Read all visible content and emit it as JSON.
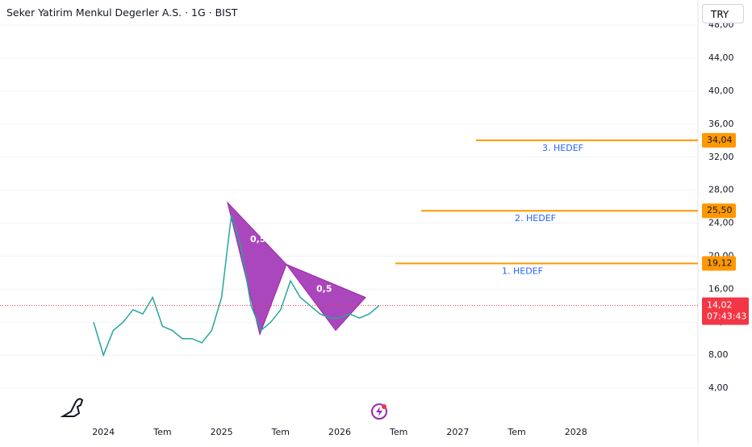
{
  "header": {
    "title": "Seker Yatirim Menkul Degerler A.S. · 1G · BIST",
    "currency": "TRY"
  },
  "chart_data": {
    "type": "line",
    "categories": [
      null,
      "2024",
      null,
      null,
      null,
      null,
      null,
      "Tem",
      null,
      null,
      null,
      null,
      null,
      "2025",
      null,
      null,
      null,
      null,
      null,
      "Tem",
      null,
      null,
      null,
      null,
      null,
      "2026",
      null,
      null,
      null,
      null,
      null,
      "Tem",
      null,
      null,
      null,
      null,
      null,
      "2027",
      null,
      null,
      null,
      null,
      null,
      "Tem",
      null,
      null,
      null,
      null,
      null,
      "2028"
    ],
    "series": [
      {
        "name": "Seker Yatirim",
        "color": "#26a69a",
        "values": [
          12,
          8,
          11,
          12,
          13.5,
          13,
          15,
          11.5,
          11,
          10,
          10,
          9.5,
          11,
          15,
          25,
          21,
          14,
          11,
          12,
          13.5,
          17,
          15,
          14,
          13,
          12.5,
          12.5,
          13,
          12.5,
          13,
          14,
          null,
          null,
          null,
          null,
          null,
          null,
          null,
          null,
          null,
          null,
          null,
          null,
          null,
          null,
          null,
          null,
          null,
          null,
          null,
          null
        ]
      }
    ],
    "ylim": [
      0,
      48.6
    ],
    "yticks": [
      {
        "value": 4,
        "label": "4,00"
      },
      {
        "value": 8,
        "label": "8,00"
      },
      {
        "value": 12,
        "label": "12,00"
      },
      {
        "value": 16,
        "label": "16,00"
      },
      {
        "value": 20,
        "label": "20,00"
      },
      {
        "value": 24,
        "label": "24,00"
      },
      {
        "value": 28,
        "label": "28,00"
      },
      {
        "value": 32,
        "label": "32,00"
      },
      {
        "value": 36,
        "label": "36,00"
      },
      {
        "value": 40,
        "label": "40,00"
      },
      {
        "value": 44,
        "label": "44,00"
      },
      {
        "value": 48,
        "label": "48,00"
      }
    ],
    "grid": true,
    "pattern": {
      "color": "#9c27b0",
      "values": [
        26.5,
        10.5,
        19,
        11,
        15
      ],
      "labels": [
        "0,5",
        "0,5"
      ]
    },
    "targets": {
      "color": "#ff9800",
      "label_color": "#2962ff",
      "values": [
        19.12,
        25.5,
        34.04
      ],
      "value_labels": [
        "19,12",
        "25,50",
        "34,04"
      ],
      "labels": [
        "1. HEDEF",
        "2. HEDEF",
        "3. HEDEF"
      ]
    },
    "last_price": {
      "value": 14.02,
      "value_label": "14,02",
      "countdown": "07:43:43",
      "color": "#f23645"
    }
  }
}
